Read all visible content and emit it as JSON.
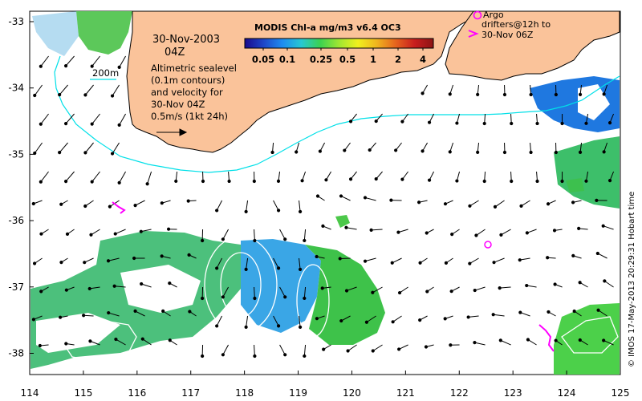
{
  "map": {
    "title": "MODIS Chl-a mg/m3 v6.4 OC3",
    "colorbar": {
      "ticks": [
        "0.05",
        "0.1",
        "0.25",
        "0.5",
        "1",
        "2",
        "4"
      ],
      "colors": [
        "#1a0a8c",
        "#1e46c8",
        "#1e8cf0",
        "#28c8d2",
        "#3cd250",
        "#a0e632",
        "#f0f01e",
        "#f0b41e",
        "#e6641e",
        "#c81e1e",
        "#8c1414"
      ]
    },
    "date": "30-Nov-2003",
    "time": "04Z",
    "depth_label": "200m",
    "legend_lines": [
      "Altimetric sealevel",
      "(0.1m contours)",
      "and velocity for",
      "30-Nov 04Z",
      "0.5m/s (1kt 24h)"
    ],
    "argo_lines": [
      "Argo",
      "drifters@12h to",
      "30-Nov 06Z"
    ],
    "credit": "© IMOS 17-May-2013 20:29:31 Hobart time",
    "x_ticks": [
      "114",
      "115",
      "116",
      "117",
      "118",
      "119",
      "120",
      "121",
      "122",
      "123",
      "124",
      "125"
    ],
    "y_ticks": [
      "-33",
      "-34",
      "-35",
      "-36",
      "-37",
      "-38"
    ],
    "x_range": [
      114,
      125
    ],
    "y_range": [
      -33,
      -38.5
    ],
    "colors": {
      "land": "#fac39a",
      "coast": "#000000",
      "isobath": "#00e0e8",
      "argo": "#ff00ff"
    }
  }
}
